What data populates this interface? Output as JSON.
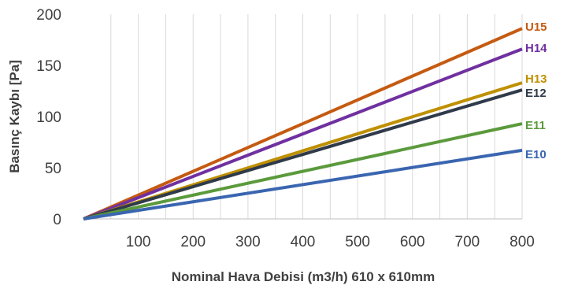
{
  "chart_data": {
    "type": "line",
    "title": "",
    "xlabel": "Nominal Hava Debisi (m3/h) 610 x 610mm",
    "ylabel": "Basınç Kaybı [Pa]",
    "xlim": [
      0,
      800
    ],
    "ylim": [
      0,
      200
    ],
    "x_ticks": [
      100,
      200,
      300,
      400,
      500,
      600,
      700,
      800
    ],
    "y_ticks": [
      0,
      50,
      100,
      150,
      200
    ],
    "grid": "vertical",
    "x_grid_step": 50,
    "legend": "end-of-line labels",
    "series": [
      {
        "name": "U15",
        "color": "#C55A11",
        "x": [
          0,
          800
        ],
        "values": [
          0,
          186
        ]
      },
      {
        "name": "H14",
        "color": "#7030A0",
        "x": [
          0,
          800
        ],
        "values": [
          0,
          166
        ]
      },
      {
        "name": "H13",
        "color": "#BF9000",
        "x": [
          0,
          800
        ],
        "values": [
          0,
          133
        ]
      },
      {
        "name": "E12",
        "color": "#2F3A4A",
        "x": [
          0,
          800
        ],
        "values": [
          0,
          126
        ]
      },
      {
        "name": "E11",
        "color": "#5B9A3C",
        "x": [
          0,
          800
        ],
        "values": [
          0,
          93
        ]
      },
      {
        "name": "E10",
        "color": "#3A65B0",
        "x": [
          0,
          800
        ],
        "values": [
          0,
          67
        ]
      }
    ]
  }
}
